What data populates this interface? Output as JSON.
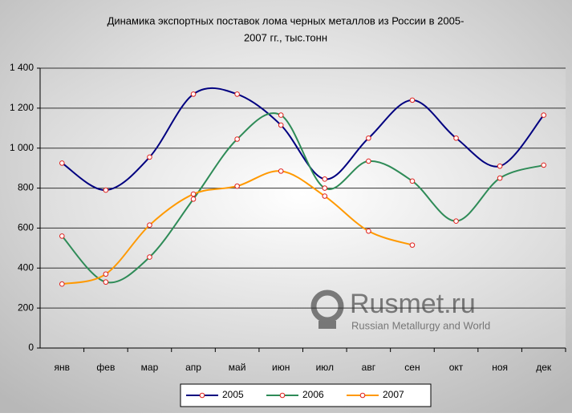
{
  "chart_data": {
    "type": "line",
    "title": [
      "Динамика экспортных поставок лома черных металлов из России в 2005-",
      "2007 гг., тыс.тонн"
    ],
    "categories": [
      "янв",
      "фев",
      "мар",
      "апр",
      "май",
      "июн",
      "июл",
      "авг",
      "сен",
      "окт",
      "ноя",
      "дек"
    ],
    "series": [
      {
        "name": "2005",
        "color": "#000080",
        "values": [
          925,
          790,
          955,
          1270,
          1270,
          1115,
          845,
          1050,
          1240,
          1050,
          910,
          1165
        ]
      },
      {
        "name": "2006",
        "color": "#2e8b57",
        "values": [
          560,
          330,
          455,
          745,
          1045,
          1165,
          800,
          935,
          835,
          635,
          850,
          915
        ]
      },
      {
        "name": "2007",
        "color": "#ff9900",
        "values": [
          320,
          370,
          615,
          770,
          810,
          885,
          760,
          585,
          515,
          null,
          null,
          null
        ]
      }
    ],
    "ylim": [
      0,
      1400
    ],
    "yticks": [
      0,
      200,
      400,
      600,
      800,
      {
        "value": 1000,
        "label": "1 000"
      },
      {
        "value": 1200,
        "label": "1 200"
      },
      {
        "value": 1400,
        "label": "1 400"
      }
    ],
    "grid": true,
    "smooth": true,
    "legend": "bottom",
    "marker_edge": "#e0201c",
    "watermark": {
      "name": "Rusmet.ru",
      "tagline": "Russian Metallurgy and World"
    }
  }
}
